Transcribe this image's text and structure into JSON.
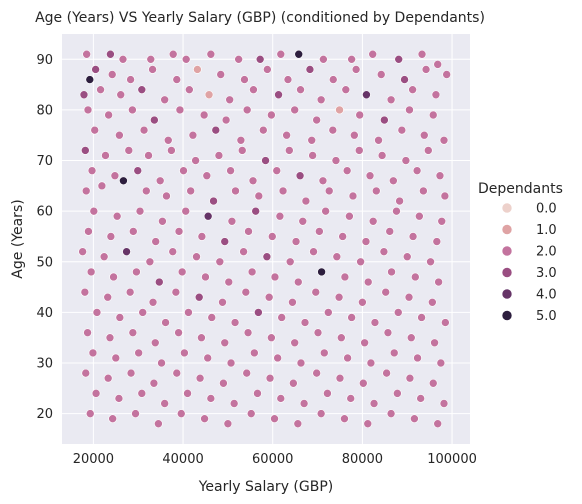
{
  "chart_data": {
    "type": "scatter",
    "title": "Age (Years) VS Yearly Salary (GBP) (conditioned by Dependants)",
    "xlabel": "Yearly Salary (GBP)",
    "ylabel": "Age (Years)",
    "xlim": [
      13000,
      104000
    ],
    "ylim": [
      14,
      95
    ],
    "xticks": [
      20000,
      40000,
      60000,
      80000,
      100000
    ],
    "yticks": [
      20,
      30,
      40,
      50,
      60,
      70,
      80,
      90
    ],
    "grid": true,
    "background": "#eaeaf2",
    "legend": {
      "title": "Dependants",
      "placement": "right",
      "entries": [
        {
          "label": "0.0",
          "value": 0,
          "color": "#edd1cb"
        },
        {
          "label": "1.0",
          "value": 1,
          "color": "#dfa3a4"
        },
        {
          "label": "2.0",
          "value": 2,
          "color": "#c3739e"
        },
        {
          "label": "3.0",
          "value": 3,
          "color": "#9a4e82"
        },
        {
          "label": "4.0",
          "value": 4,
          "color": "#663467"
        },
        {
          "label": "5.0",
          "value": 5,
          "color": "#2d1e3e"
        }
      ]
    },
    "points": [
      [
        18500,
        91,
        2
      ],
      [
        20500,
        88,
        3
      ],
      [
        23800,
        91,
        3
      ],
      [
        26600,
        90,
        2
      ],
      [
        32800,
        90,
        2
      ],
      [
        37800,
        91,
        2
      ],
      [
        40700,
        90,
        2
      ],
      [
        46200,
        91,
        2
      ],
      [
        52400,
        90,
        2
      ],
      [
        57200,
        90,
        3
      ],
      [
        61800,
        91,
        2
      ],
      [
        65800,
        91,
        5
      ],
      [
        71300,
        90,
        2
      ],
      [
        77600,
        90,
        2
      ],
      [
        82300,
        91,
        2
      ],
      [
        88100,
        90,
        3
      ],
      [
        93300,
        91,
        2
      ],
      [
        96800,
        89,
        2
      ],
      [
        19200,
        86,
        5
      ],
      [
        24200,
        87,
        2
      ],
      [
        28300,
        86,
        2
      ],
      [
        33200,
        88,
        2
      ],
      [
        38600,
        86,
        2
      ],
      [
        43200,
        88,
        1
      ],
      [
        48400,
        87,
        2
      ],
      [
        53700,
        86,
        2
      ],
      [
        58800,
        88,
        2
      ],
      [
        63400,
        86,
        2
      ],
      [
        68300,
        88,
        3
      ],
      [
        73500,
        86,
        2
      ],
      [
        78600,
        88,
        2
      ],
      [
        84200,
        87,
        2
      ],
      [
        89400,
        86,
        3
      ],
      [
        94200,
        88,
        2
      ],
      [
        98800,
        87,
        2
      ],
      [
        17900,
        83,
        3
      ],
      [
        21600,
        84,
        2
      ],
      [
        26100,
        83,
        2
      ],
      [
        30800,
        84,
        3
      ],
      [
        35900,
        82,
        2
      ],
      [
        41400,
        84,
        2
      ],
      [
        45800,
        83,
        1
      ],
      [
        50400,
        82,
        2
      ],
      [
        55700,
        84,
        2
      ],
      [
        61300,
        83,
        3
      ],
      [
        66200,
        84,
        2
      ],
      [
        70800,
        82,
        2
      ],
      [
        76300,
        84,
        2
      ],
      [
        80900,
        83,
        4
      ],
      [
        86400,
        82,
        2
      ],
      [
        91200,
        84,
        2
      ],
      [
        96400,
        83,
        2
      ],
      [
        18800,
        80,
        2
      ],
      [
        23400,
        79,
        2
      ],
      [
        28700,
        80,
        2
      ],
      [
        33600,
        78,
        3
      ],
      [
        39300,
        80,
        2
      ],
      [
        44700,
        79,
        2
      ],
      [
        49600,
        78,
        2
      ],
      [
        54300,
        80,
        2
      ],
      [
        59700,
        79,
        2
      ],
      [
        64900,
        80,
        2
      ],
      [
        69800,
        78,
        2
      ],
      [
        74900,
        80,
        1
      ],
      [
        79400,
        79,
        2
      ],
      [
        84900,
        78,
        3
      ],
      [
        90500,
        80,
        2
      ],
      [
        95800,
        79,
        2
      ],
      [
        20300,
        76,
        2
      ],
      [
        25800,
        75,
        2
      ],
      [
        31300,
        76,
        2
      ],
      [
        36700,
        74,
        2
      ],
      [
        42200,
        75,
        2
      ],
      [
        47300,
        76,
        3
      ],
      [
        52900,
        74,
        2
      ],
      [
        57900,
        76,
        2
      ],
      [
        63100,
        75,
        2
      ],
      [
        68700,
        74,
        2
      ],
      [
        73400,
        76,
        2
      ],
      [
        78200,
        75,
        2
      ],
      [
        83600,
        74,
        2
      ],
      [
        88800,
        76,
        2
      ],
      [
        93800,
        75,
        2
      ],
      [
        98200,
        74,
        2
      ],
      [
        18200,
        72,
        3
      ],
      [
        22700,
        71,
        2
      ],
      [
        27900,
        72,
        2
      ],
      [
        32300,
        71,
        2
      ],
      [
        37400,
        72,
        2
      ],
      [
        42800,
        70,
        2
      ],
      [
        48000,
        71,
        2
      ],
      [
        53200,
        72,
        2
      ],
      [
        58400,
        70,
        3
      ],
      [
        63700,
        72,
        2
      ],
      [
        68900,
        71,
        2
      ],
      [
        74100,
        70,
        2
      ],
      [
        79300,
        72,
        2
      ],
      [
        84400,
        71,
        2
      ],
      [
        89700,
        70,
        2
      ],
      [
        94700,
        72,
        2
      ],
      [
        19700,
        68,
        2
      ],
      [
        24800,
        67,
        2
      ],
      [
        29900,
        68,
        3
      ],
      [
        34900,
        66,
        2
      ],
      [
        40100,
        68,
        2
      ],
      [
        45300,
        67,
        2
      ],
      [
        50600,
        68,
        2
      ],
      [
        55600,
        66,
        2
      ],
      [
        60900,
        68,
        2
      ],
      [
        66100,
        67,
        3
      ],
      [
        71200,
        66,
        2
      ],
      [
        76600,
        68,
        2
      ],
      [
        81700,
        67,
        2
      ],
      [
        86900,
        66,
        2
      ],
      [
        92200,
        68,
        2
      ],
      [
        97300,
        67,
        2
      ],
      [
        18400,
        64,
        2
      ],
      [
        21900,
        65,
        2
      ],
      [
        26700,
        66,
        5
      ],
      [
        31800,
        64,
        2
      ],
      [
        36300,
        63,
        2
      ],
      [
        41700,
        64,
        2
      ],
      [
        46800,
        62,
        3
      ],
      [
        51700,
        64,
        2
      ],
      [
        56900,
        63,
        2
      ],
      [
        62300,
        64,
        2
      ],
      [
        67400,
        62,
        2
      ],
      [
        72600,
        64,
        2
      ],
      [
        77900,
        63,
        2
      ],
      [
        83100,
        64,
        2
      ],
      [
        88300,
        62,
        2
      ],
      [
        93600,
        64,
        2
      ],
      [
        98400,
        63,
        2
      ],
      [
        20100,
        60,
        2
      ],
      [
        25300,
        59,
        2
      ],
      [
        30400,
        60,
        2
      ],
      [
        35400,
        58,
        2
      ],
      [
        40600,
        60,
        2
      ],
      [
        45600,
        59,
        4
      ],
      [
        50900,
        58,
        2
      ],
      [
        56200,
        60,
        3
      ],
      [
        61600,
        59,
        2
      ],
      [
        66700,
        58,
        2
      ],
      [
        71800,
        60,
        2
      ],
      [
        77100,
        59,
        2
      ],
      [
        82400,
        58,
        2
      ],
      [
        87600,
        60,
        2
      ],
      [
        92700,
        59,
        2
      ],
      [
        97700,
        58,
        2
      ],
      [
        18900,
        56,
        2
      ],
      [
        23900,
        55,
        2
      ],
      [
        28900,
        56,
        2
      ],
      [
        33900,
        54,
        2
      ],
      [
        39100,
        56,
        2
      ],
      [
        44200,
        55,
        2
      ],
      [
        49300,
        54,
        3
      ],
      [
        54600,
        56,
        2
      ],
      [
        59900,
        55,
        2
      ],
      [
        65200,
        54,
        2
      ],
      [
        70400,
        56,
        2
      ],
      [
        75600,
        55,
        2
      ],
      [
        80800,
        54,
        2
      ],
      [
        86100,
        56,
        2
      ],
      [
        91300,
        55,
        2
      ],
      [
        96600,
        54,
        2
      ],
      [
        17600,
        52,
        2
      ],
      [
        22400,
        51,
        2
      ],
      [
        27400,
        52,
        4
      ],
      [
        32600,
        50,
        2
      ],
      [
        37700,
        52,
        2
      ],
      [
        43000,
        51,
        2
      ],
      [
        48200,
        50,
        2
      ],
      [
        53500,
        52,
        2
      ],
      [
        58700,
        51,
        3
      ],
      [
        63900,
        50,
        2
      ],
      [
        69100,
        52,
        2
      ],
      [
        74300,
        51,
        2
      ],
      [
        79600,
        50,
        2
      ],
      [
        84800,
        52,
        2
      ],
      [
        90000,
        51,
        2
      ],
      [
        95200,
        50,
        2
      ],
      [
        19500,
        48,
        2
      ],
      [
        24500,
        47,
        2
      ],
      [
        29600,
        48,
        2
      ],
      [
        34700,
        46,
        3
      ],
      [
        39800,
        48,
        2
      ],
      [
        45000,
        47,
        2
      ],
      [
        50200,
        46,
        2
      ],
      [
        55400,
        48,
        2
      ],
      [
        60500,
        47,
        2
      ],
      [
        65700,
        46,
        2
      ],
      [
        70900,
        48,
        5
      ],
      [
        76100,
        47,
        2
      ],
      [
        81300,
        46,
        2
      ],
      [
        86500,
        48,
        2
      ],
      [
        91800,
        47,
        2
      ],
      [
        97000,
        46,
        2
      ],
      [
        18100,
        44,
        2
      ],
      [
        23200,
        43,
        2
      ],
      [
        28200,
        44,
        2
      ],
      [
        33300,
        42,
        2
      ],
      [
        38400,
        44,
        2
      ],
      [
        43600,
        43,
        3
      ],
      [
        48800,
        42,
        2
      ],
      [
        54000,
        44,
        2
      ],
      [
        59200,
        43,
        2
      ],
      [
        64400,
        42,
        2
      ],
      [
        69600,
        44,
        2
      ],
      [
        74800,
        43,
        2
      ],
      [
        80000,
        42,
        2
      ],
      [
        85200,
        44,
        2
      ],
      [
        90400,
        43,
        2
      ],
      [
        95600,
        42,
        2
      ],
      [
        20800,
        40,
        2
      ],
      [
        25900,
        39,
        2
      ],
      [
        31000,
        40,
        2
      ],
      [
        36100,
        38,
        2
      ],
      [
        41200,
        40,
        2
      ],
      [
        46400,
        39,
        2
      ],
      [
        51600,
        38,
        2
      ],
      [
        56800,
        40,
        3
      ],
      [
        62000,
        39,
        2
      ],
      [
        67200,
        38,
        2
      ],
      [
        72400,
        40,
        2
      ],
      [
        77600,
        39,
        2
      ],
      [
        82800,
        38,
        2
      ],
      [
        88000,
        40,
        2
      ],
      [
        93200,
        39,
        2
      ],
      [
        98500,
        38,
        2
      ],
      [
        18700,
        36,
        2
      ],
      [
        23700,
        35,
        2
      ],
      [
        28800,
        36,
        2
      ],
      [
        33800,
        34,
        2
      ],
      [
        39000,
        36,
        2
      ],
      [
        44100,
        35,
        2
      ],
      [
        49300,
        34,
        2
      ],
      [
        54500,
        36,
        2
      ],
      [
        59700,
        35,
        2
      ],
      [
        64900,
        34,
        2
      ],
      [
        70100,
        36,
        2
      ],
      [
        75300,
        35,
        2
      ],
      [
        80500,
        34,
        2
      ],
      [
        85700,
        36,
        2
      ],
      [
        90900,
        35,
        2
      ],
      [
        96100,
        34,
        2
      ],
      [
        19900,
        32,
        2
      ],
      [
        25000,
        31,
        2
      ],
      [
        30100,
        32,
        2
      ],
      [
        35200,
        30,
        2
      ],
      [
        40300,
        32,
        2
      ],
      [
        45500,
        31,
        2
      ],
      [
        50700,
        30,
        2
      ],
      [
        55900,
        32,
        2
      ],
      [
        61100,
        31,
        2
      ],
      [
        66300,
        30,
        2
      ],
      [
        71500,
        32,
        2
      ],
      [
        76700,
        31,
        2
      ],
      [
        81900,
        30,
        2
      ],
      [
        87100,
        32,
        2
      ],
      [
        92300,
        31,
        2
      ],
      [
        97500,
        30,
        2
      ],
      [
        18300,
        28,
        2
      ],
      [
        23300,
        27,
        2
      ],
      [
        28400,
        28,
        2
      ],
      [
        33500,
        26,
        2
      ],
      [
        38600,
        28,
        2
      ],
      [
        43800,
        27,
        2
      ],
      [
        49000,
        26,
        2
      ],
      [
        54200,
        28,
        2
      ],
      [
        59400,
        27,
        2
      ],
      [
        64600,
        26,
        2
      ],
      [
        69800,
        28,
        2
      ],
      [
        75000,
        27,
        2
      ],
      [
        80200,
        26,
        2
      ],
      [
        85400,
        28,
        2
      ],
      [
        90600,
        27,
        2
      ],
      [
        95800,
        26,
        2
      ],
      [
        20600,
        24,
        2
      ],
      [
        25700,
        23,
        2
      ],
      [
        30800,
        24,
        2
      ],
      [
        35900,
        22,
        2
      ],
      [
        41000,
        24,
        2
      ],
      [
        46200,
        23,
        2
      ],
      [
        51400,
        22,
        2
      ],
      [
        56600,
        24,
        2
      ],
      [
        61800,
        23,
        2
      ],
      [
        67000,
        22,
        2
      ],
      [
        72200,
        24,
        2
      ],
      [
        77400,
        23,
        2
      ],
      [
        82600,
        22,
        2
      ],
      [
        87800,
        24,
        2
      ],
      [
        93000,
        23,
        2
      ],
      [
        98200,
        22,
        2
      ],
      [
        19300,
        20,
        2
      ],
      [
        24300,
        19,
        2
      ],
      [
        29400,
        20,
        2
      ],
      [
        34500,
        18,
        2
      ],
      [
        39600,
        20,
        2
      ],
      [
        44800,
        19,
        2
      ],
      [
        50000,
        18,
        2
      ],
      [
        55200,
        20,
        2
      ],
      [
        60400,
        19,
        2
      ],
      [
        65600,
        18,
        2
      ],
      [
        70800,
        20,
        2
      ],
      [
        76000,
        19,
        2
      ],
      [
        81200,
        18,
        2
      ],
      [
        86400,
        20,
        2
      ],
      [
        91600,
        19,
        2
      ],
      [
        96800,
        18,
        2
      ]
    ]
  }
}
